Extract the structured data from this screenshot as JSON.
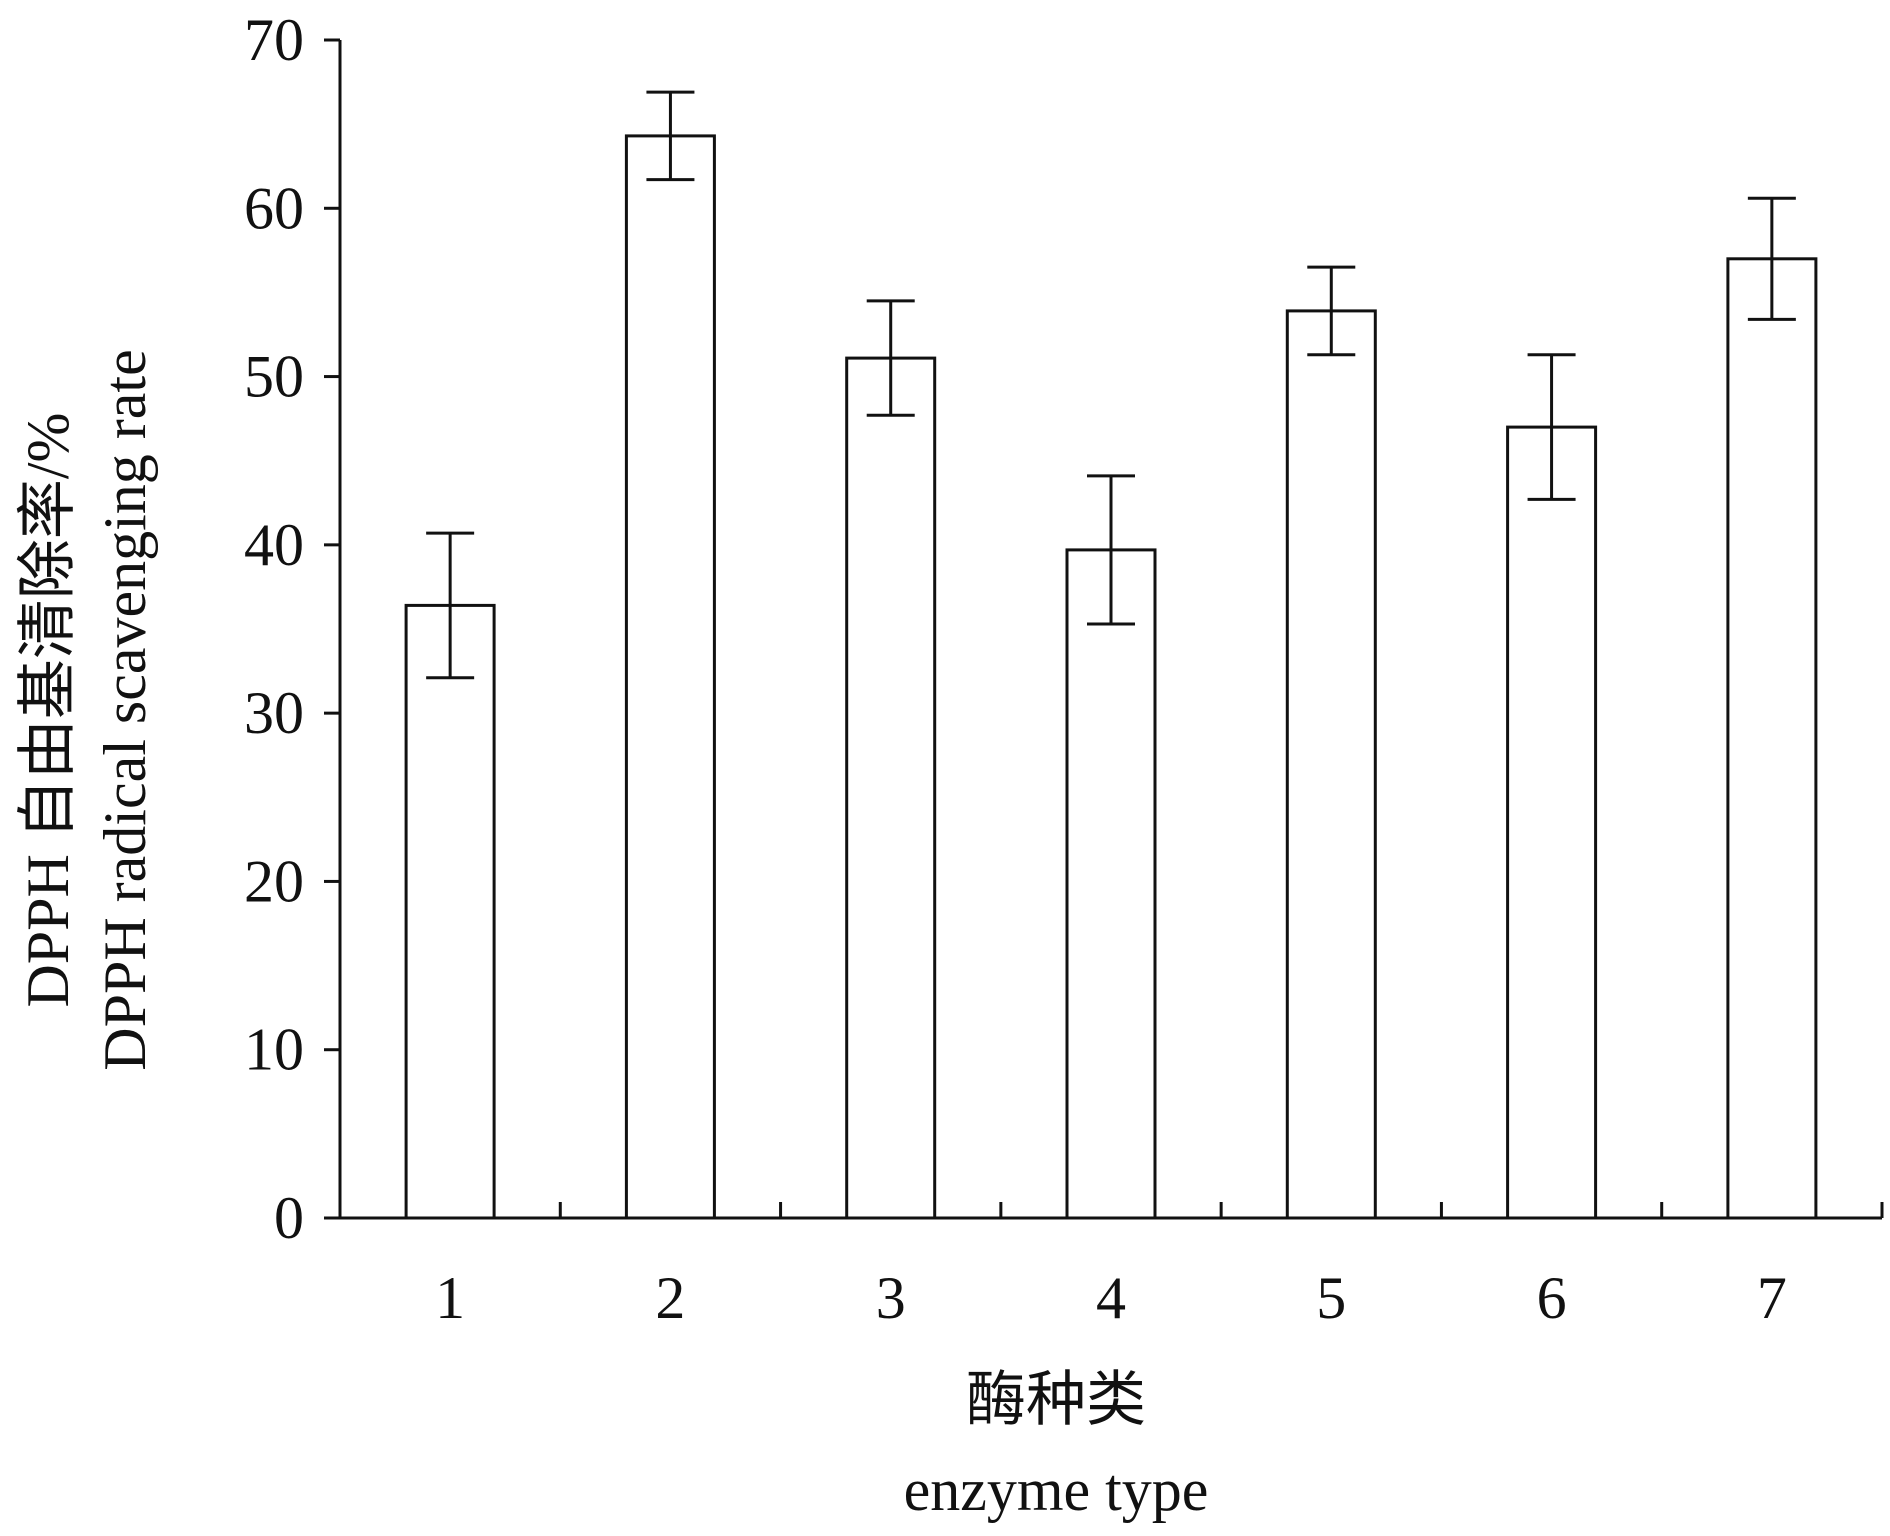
{
  "chart_data": {
    "type": "bar",
    "categories": [
      "1",
      "2",
      "3",
      "4",
      "5",
      "6",
      "7"
    ],
    "series": [
      {
        "values": [
          36.4,
          64.3,
          51.1,
          39.7,
          53.9,
          47.0,
          57.0
        ],
        "error": [
          4.3,
          2.6,
          3.4,
          4.4,
          2.6,
          4.3,
          3.6
        ]
      }
    ],
    "ylim": [
      0,
      70
    ],
    "yticks": [
      0,
      10,
      20,
      30,
      40,
      50,
      60,
      70
    ],
    "ylabel_zh": "DPPH 自由基清除率/%",
    "ylabel_en": "DPPH radical scavenging rate",
    "xlabel_zh": "酶种类",
    "xlabel_en": "enzyme type",
    "grid": false,
    "bar_fill": "#ffffff",
    "stroke_color": "#111111"
  }
}
